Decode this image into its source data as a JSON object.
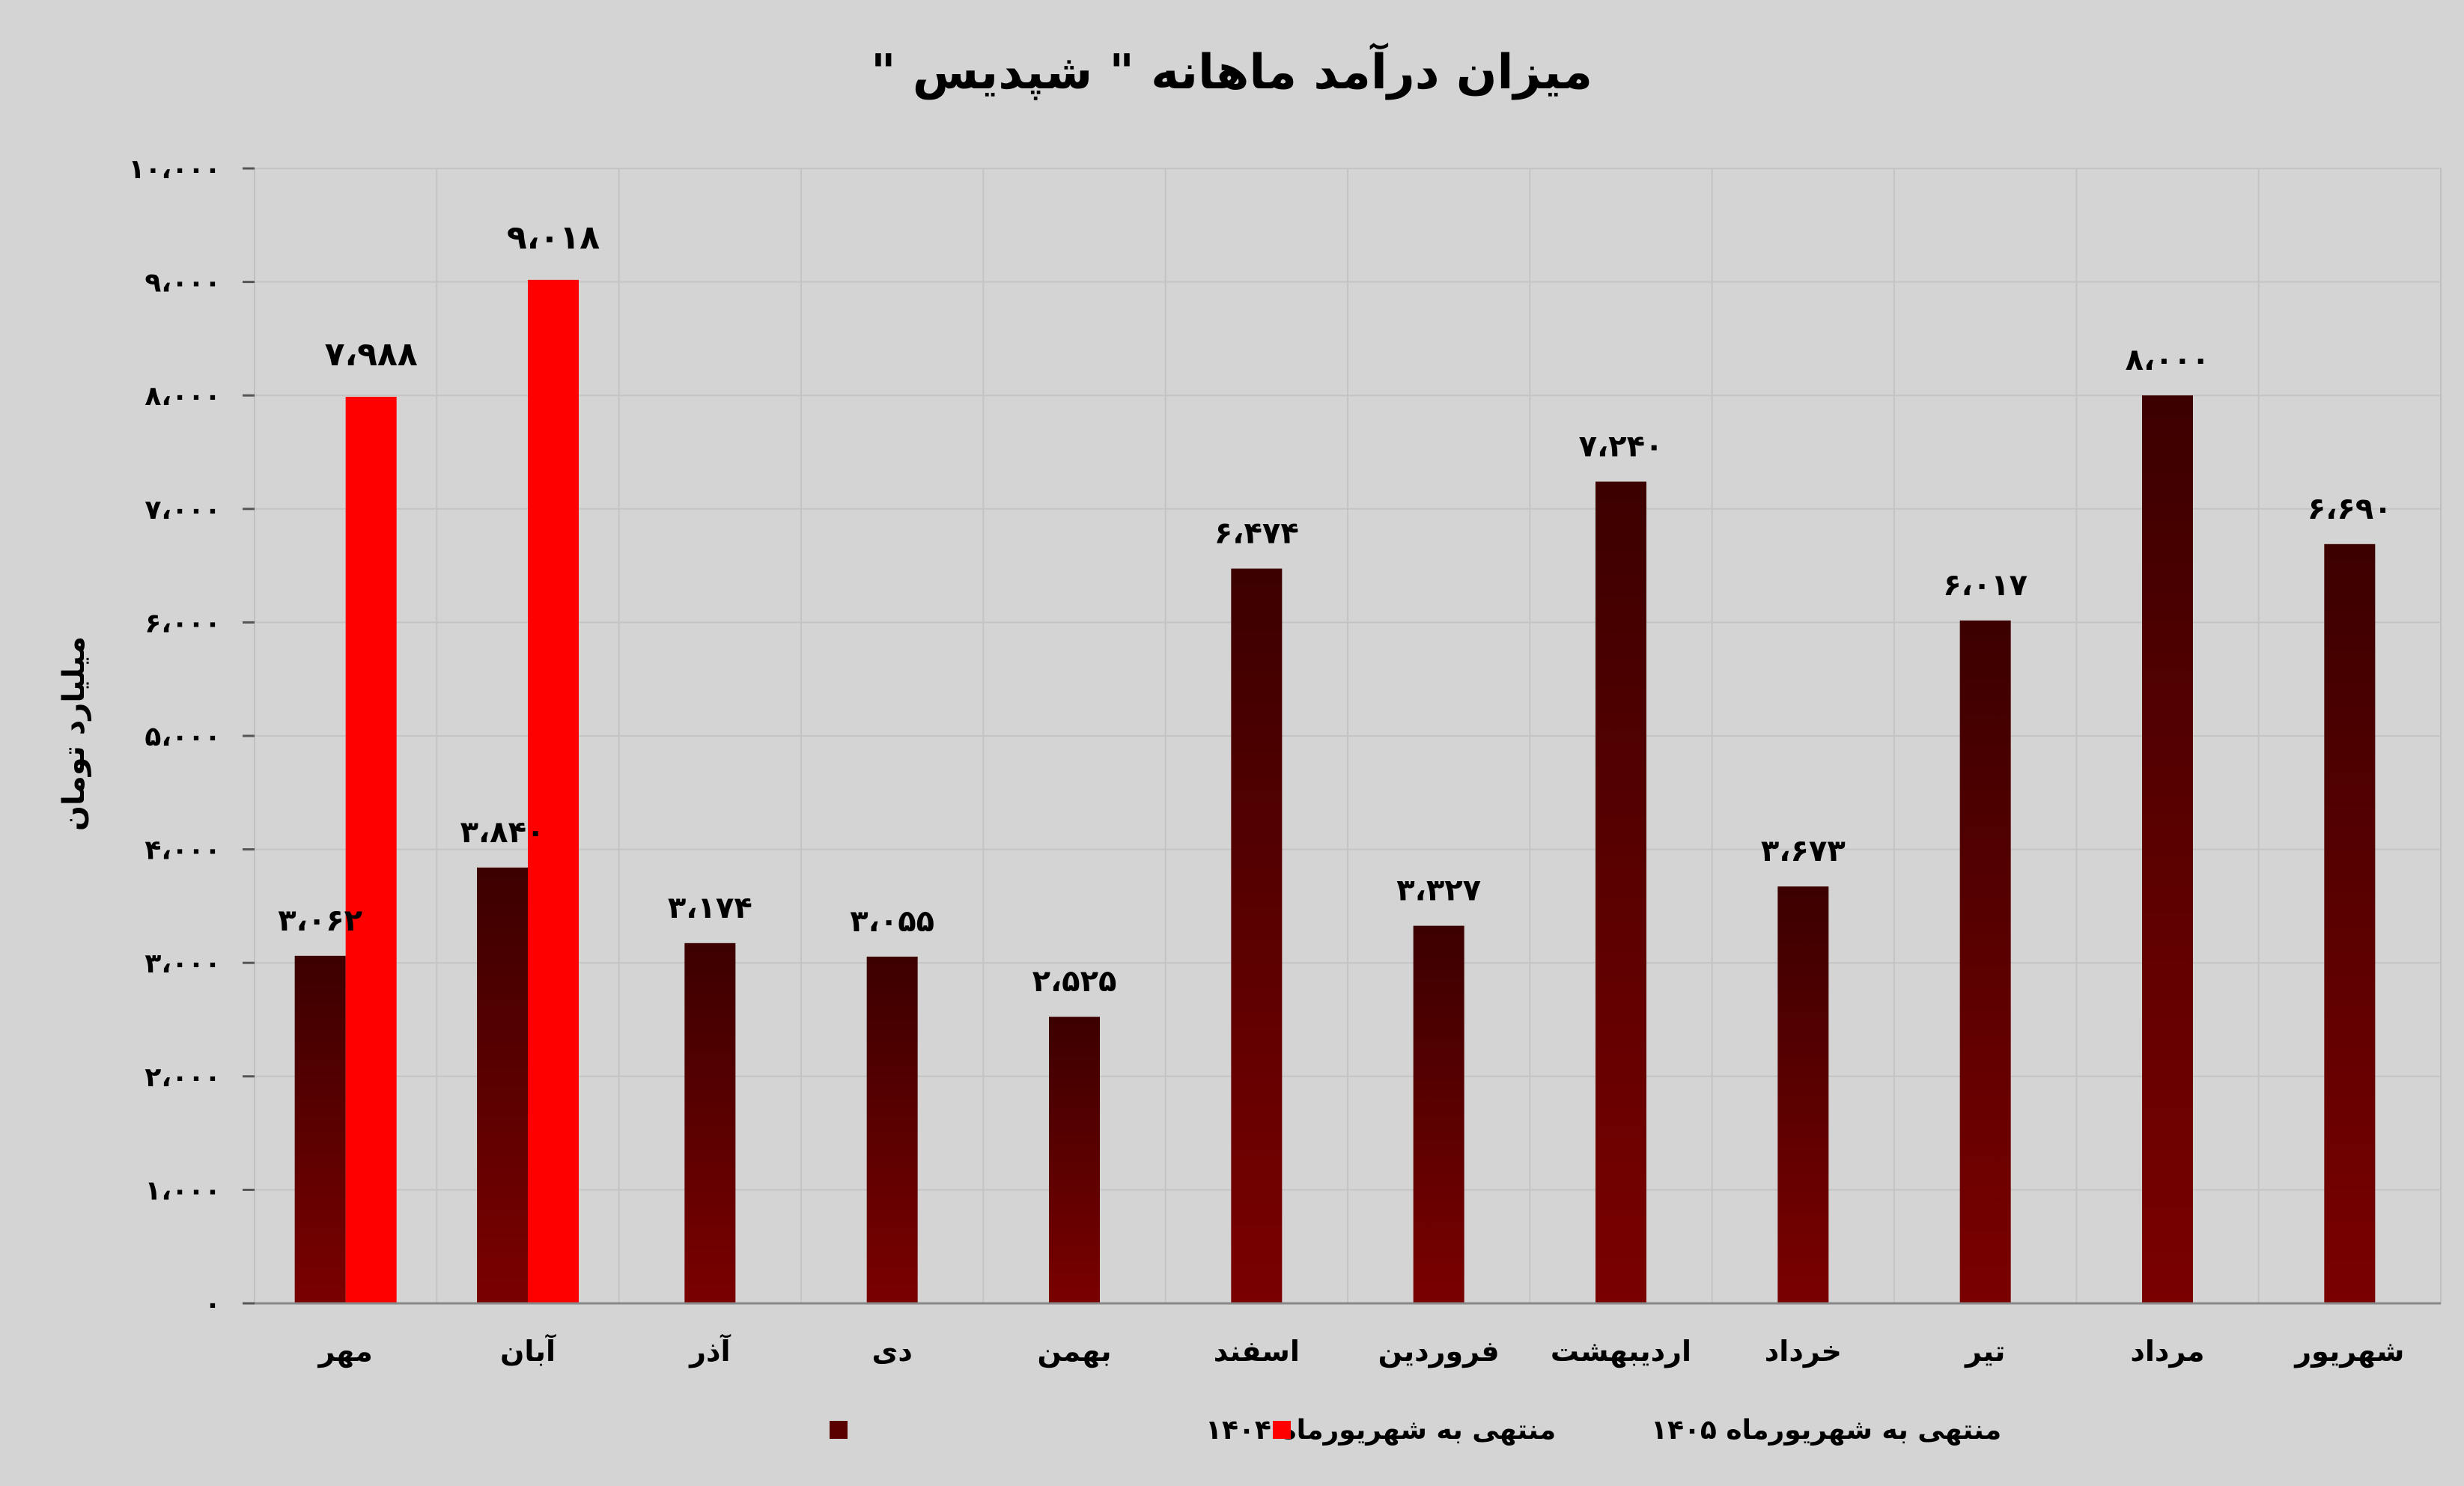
{
  "chart_data": {
    "type": "bar",
    "title": "میزان درآمد ماهانه \" شپدیس \"",
    "ylabel": "میلیارد تومان",
    "xlabel": "",
    "ylim": [
      0,
      10000
    ],
    "y_ticks": [
      0,
      1000,
      2000,
      3000,
      4000,
      5000,
      6000,
      7000,
      8000,
      9000,
      10000
    ],
    "y_tick_labels": [
      "۰",
      "۱،۰۰۰",
      "۲،۰۰۰",
      "۳،۰۰۰",
      "۴،۰۰۰",
      "۵،۰۰۰",
      "۶،۰۰۰",
      "۷،۰۰۰",
      "۸،۰۰۰",
      "۹،۰۰۰",
      "۱۰،۰۰۰"
    ],
    "grid": true,
    "legend_position": "bottom",
    "categories": [
      "مهر",
      "آبان",
      "آذر",
      "دی",
      "بهمن",
      "اسفند",
      "فروردین",
      "اردیبهشت",
      "خرداد",
      "تیر",
      "مرداد",
      "شهریور"
    ],
    "series": [
      {
        "name": "منتهی به شهریورماه ۱۴۰۴",
        "color": "#7a0000",
        "values": [
          3062,
          3840,
          3174,
          3055,
          2525,
          6474,
          3327,
          7240,
          3673,
          6017,
          8000,
          6690
        ],
        "labels": [
          "۳،۰۶۲",
          "۳،۸۴۰",
          "۳،۱۷۴",
          "۳،۰۵۵",
          "۲،۵۲۵",
          "۶،۴۷۴",
          "۳،۳۲۷",
          "۷،۲۴۰",
          "۳،۶۷۳",
          "۶،۰۱۷",
          "۸،۰۰۰",
          "۶،۶۹۰"
        ]
      },
      {
        "name": "منتهی به شهریورماه ۱۴۰۵",
        "color": "#ff0000",
        "values": [
          7988,
          9018,
          null,
          null,
          null,
          null,
          null,
          null,
          null,
          null,
          null,
          null
        ],
        "labels": [
          "۷،۹۸۸",
          "۹،۰۱۸",
          null,
          null,
          null,
          null,
          null,
          null,
          null,
          null,
          null,
          null
        ]
      }
    ]
  }
}
